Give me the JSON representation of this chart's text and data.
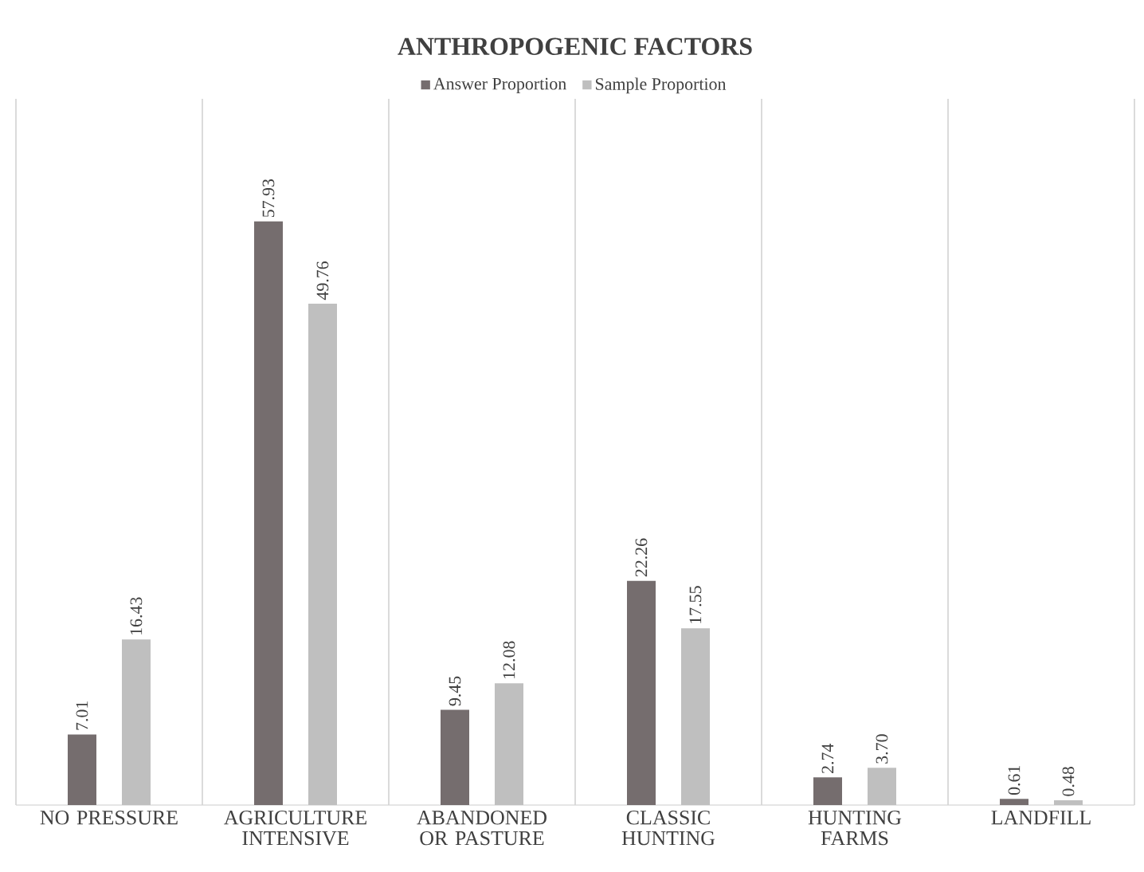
{
  "chart_data": {
    "type": "bar",
    "title": "ANTHROPOGENIC FACTORS",
    "categories": [
      "NO PRESSURE",
      "AGRICULTURE INTENSIVE",
      "ABANDONED OR PASTURE",
      "CLASSIC HUNTING",
      "HUNTING FARMS",
      "LANDFILL"
    ],
    "series": [
      {
        "name": "Answer Proportion",
        "color": "#756d6e",
        "values": [
          7.01,
          57.93,
          9.45,
          22.26,
          2.74,
          0.61
        ],
        "value_labels": [
          "7.01",
          "57.93",
          "9.45",
          "22.26",
          "2.74",
          "0.61"
        ]
      },
      {
        "name": "Sample Proportion",
        "color": "#bfbfbf",
        "values": [
          16.43,
          49.76,
          12.08,
          17.55,
          3.7,
          0.48
        ],
        "value_labels": [
          "16.43",
          "49.76",
          "12.08",
          "17.55",
          "3.70",
          "0.48"
        ]
      }
    ],
    "grid": "x",
    "legend": "top",
    "tick_labels": "x"
  }
}
